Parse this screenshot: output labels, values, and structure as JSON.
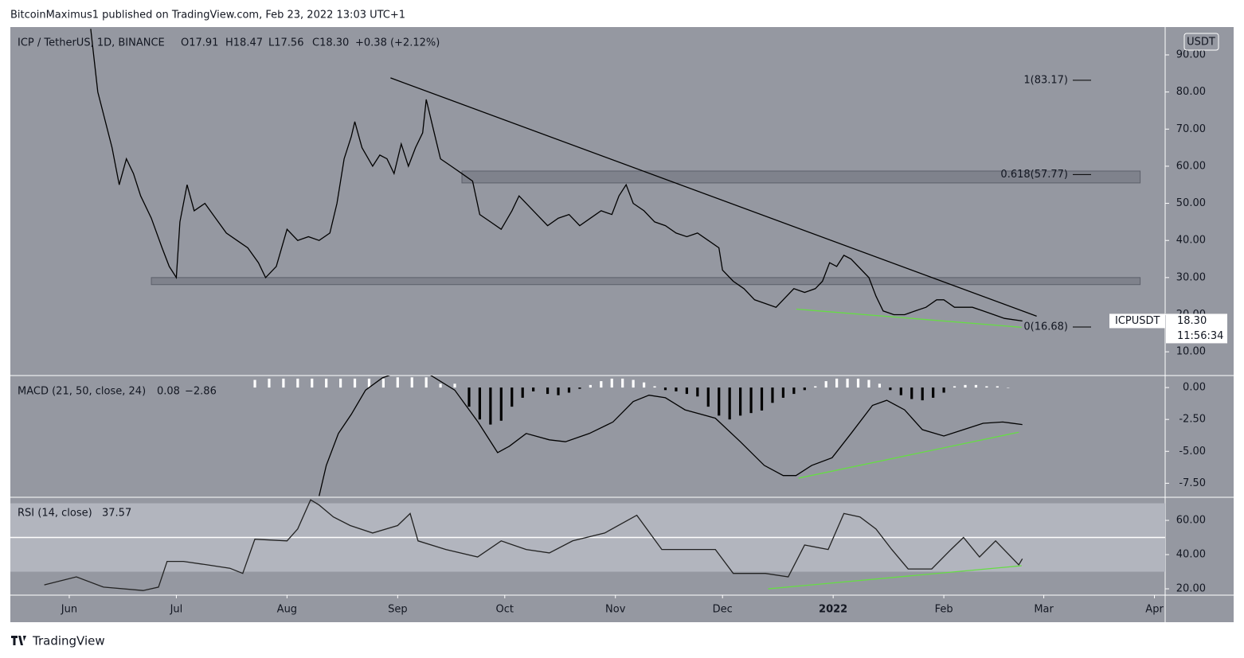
{
  "header": "BitcoinMaximus1 published on TradingView.com, Feb 23, 2022 13:03 UTC+1",
  "footer": "TradingView",
  "chart_data": [
    {
      "type": "line",
      "title": "ICP / TetherUS, 1D, BINANCE",
      "ohlc": [
        "O17.91",
        "H18.47",
        "L17.56",
        "C18.30",
        "+0.38 (+2.12%)"
      ],
      "axis_unit": "USDT",
      "last_price_label": "18.30",
      "countdown": "11:56:34",
      "xlim": [
        -16.5,
        307
      ],
      "xticks": [
        {
          "value": 0,
          "label": "Jun"
        },
        {
          "value": 30,
          "label": "Jul"
        },
        {
          "value": 61,
          "label": "Aug"
        },
        {
          "value": 92,
          "label": "Sep"
        },
        {
          "value": 122,
          "label": "Oct"
        },
        {
          "value": 153,
          "label": "Nov"
        },
        {
          "value": 183,
          "label": "Dec"
        },
        {
          "value": 214,
          "label": "2022"
        },
        {
          "value": 245,
          "label": "Feb"
        },
        {
          "value": 273,
          "label": "Mar"
        },
        {
          "value": 304,
          "label": "Apr"
        }
      ],
      "ylim": [
        3.6,
        97.5
      ],
      "yticks": [
        {
          "value": 10,
          "label": "10.00"
        },
        {
          "value": 20,
          "label": "20.00"
        },
        {
          "value": 30,
          "label": "30.00"
        },
        {
          "value": 40,
          "label": "40.00"
        },
        {
          "value": 50,
          "label": "50.00"
        },
        {
          "value": 60,
          "label": "60.00"
        },
        {
          "value": 70,
          "label": "70.00"
        },
        {
          "value": 80,
          "label": "80.00"
        },
        {
          "value": 90,
          "label": "90.00"
        }
      ],
      "series": [
        {
          "name": "ICPUSDT",
          "color": "#000000",
          "x": [
            6,
            8,
            12,
            14,
            16,
            18,
            20,
            23,
            26,
            28,
            30,
            31,
            33,
            35,
            38,
            41,
            44,
            47,
            50,
            53,
            55,
            58,
            61,
            64,
            67,
            70,
            73,
            75,
            77,
            79,
            80,
            82,
            85,
            87,
            89,
            91,
            93,
            95,
            97,
            99,
            100,
            102,
            104,
            107,
            110,
            113,
            115,
            118,
            121,
            124,
            126,
            128,
            131,
            134,
            137,
            140,
            143,
            146,
            149,
            152,
            154,
            156,
            158,
            161,
            164,
            167,
            170,
            173,
            176,
            179,
            182,
            183,
            186,
            189,
            192,
            195,
            198,
            200,
            203,
            206,
            209,
            211,
            213,
            215,
            217,
            219,
            222,
            224,
            226,
            228,
            231,
            234,
            237,
            240,
            243,
            245,
            248,
            251,
            253,
            256,
            259,
            262,
            267
          ],
          "values": [
            97,
            80,
            65,
            55,
            62,
            58,
            52,
            46,
            38,
            33,
            30,
            45,
            55,
            48,
            50,
            46,
            42,
            40,
            38,
            34,
            30,
            33,
            43,
            40,
            41,
            40,
            42,
            50,
            62,
            68,
            72,
            65,
            60,
            63,
            62,
            58,
            66,
            60,
            65,
            69,
            78,
            70,
            62,
            60,
            58,
            56,
            47,
            45,
            43,
            48,
            52,
            50,
            47,
            44,
            46,
            47,
            44,
            46,
            48,
            47,
            52,
            55,
            50,
            48,
            45,
            44,
            42,
            41,
            42,
            40,
            38,
            32,
            29,
            27,
            24,
            23,
            22,
            24,
            27,
            26,
            27,
            29,
            34,
            33,
            36,
            35,
            32,
            30,
            25,
            21,
            20,
            20,
            21,
            22,
            24,
            24,
            22,
            22,
            22,
            21,
            20,
            19,
            18.3
          ]
        }
      ],
      "zones": [
        {
          "xlim": [
            110,
            300
          ],
          "ylim": [
            55.5,
            58.7
          ]
        },
        {
          "xlim": [
            23,
            300
          ],
          "ylim": [
            28.1,
            30
          ]
        }
      ],
      "trendlines": [
        {
          "color": "#000000",
          "x": [
            90,
            271
          ],
          "y": [
            83.8,
            19.6
          ]
        },
        {
          "color": "#66dd44",
          "x": [
            203.7,
            266.8
          ],
          "y": [
            21.5,
            16.6
          ]
        }
      ],
      "fib_levels": [
        {
          "label": "1(83.17)",
          "value": 83.17
        },
        {
          "label": "0.618(57.77)",
          "value": 57.77
        },
        {
          "label": "0(16.68)",
          "value": 16.68
        }
      ]
    },
    {
      "type": "line",
      "title": "MACD (21, 50, close, 24)",
      "legend_values": [
        "0.08",
        "−2.86"
      ],
      "ylim": [
        -8.6,
        0.94
      ],
      "yticks": [
        {
          "value": 0,
          "label": "0.00"
        },
        {
          "value": -2.5,
          "label": "-2.50"
        },
        {
          "value": -5,
          "label": "-5.00"
        },
        {
          "value": -7.5,
          "label": "-7.50"
        }
      ],
      "histogram": {
        "colors": {
          "positive": "#ffffff",
          "negative": "#000000"
        },
        "x": [
          52,
          56,
          60,
          64,
          68,
          72,
          76,
          80,
          84,
          88,
          92,
          96,
          100,
          104,
          108,
          112,
          115,
          118,
          121,
          124,
          127,
          130,
          134,
          137,
          140,
          143,
          146,
          149,
          152,
          155,
          158,
          161,
          164,
          167,
          170,
          173,
          176,
          179,
          182,
          185,
          188,
          191,
          194,
          197,
          200,
          203,
          206,
          209,
          212,
          215,
          218,
          221,
          224,
          227,
          230,
          233,
          236,
          239,
          242,
          245,
          248,
          251,
          254,
          257,
          260,
          263
        ],
        "values": [
          0.6,
          0.7,
          0.7,
          0.7,
          0.7,
          0.7,
          0.7,
          0.7,
          0.7,
          0.7,
          0.8,
          0.8,
          0.8,
          0.3,
          0.3,
          -1.5,
          -2.5,
          -2.9,
          -2.6,
          -1.5,
          -0.8,
          -0.3,
          -0.5,
          -0.6,
          -0.4,
          -0.1,
          0.2,
          0.5,
          0.7,
          0.7,
          0.6,
          0.4,
          0.1,
          -0.2,
          -0.3,
          -0.5,
          -0.7,
          -1.5,
          -2.2,
          -2.5,
          -2.2,
          -2.0,
          -1.8,
          -1.2,
          -0.8,
          -0.5,
          -0.2,
          0.1,
          0.5,
          0.7,
          0.7,
          0.7,
          0.6,
          0.3,
          -0.2,
          -0.6,
          -0.9,
          -1.0,
          -0.8,
          -0.4,
          0.1,
          0.2,
          0.2,
          0.1,
          0.1,
          0.0
        ]
      },
      "series": [
        {
          "color": "#000000",
          "x": [
            70,
            72,
            75.4,
            79,
            83,
            87.7,
            92,
            101,
            108,
            114.5,
            120,
            123.3,
            128,
            134.5,
            139,
            145.7,
            152.3,
            158,
            162.4,
            167,
            172.5,
            181,
            188,
            194.7,
            200,
            203.6,
            208,
            213.7,
            219,
            225,
            229,
            234,
            239,
            245,
            250.5,
            256,
            261.5,
            267
          ],
          "values": [
            -8.5,
            -6.1,
            -3.6,
            -2.1,
            -0.2,
            0.75,
            1.2,
            1.0,
            -0.2,
            -2.7,
            -5.1,
            -4.6,
            -3.6,
            -4.1,
            -4.25,
            -3.6,
            -2.7,
            -1.1,
            -0.6,
            -0.8,
            -1.75,
            -2.4,
            -4.25,
            -6.1,
            -6.9,
            -6.9,
            -6.1,
            -5.5,
            -3.6,
            -1.4,
            -1.0,
            -1.75,
            -3.3,
            -3.8,
            -3.3,
            -2.8,
            -2.7,
            -2.9
          ]
        }
      ],
      "trendlines": [
        {
          "color": "#66dd44",
          "x": [
            204.3,
            266
          ],
          "y": [
            -7.1,
            -3.5
          ]
        }
      ]
    },
    {
      "type": "line",
      "title": "RSI (14, close)",
      "legend_values": [
        "37.57"
      ],
      "ylim": [
        16.3,
        73.5
      ],
      "yticks": [
        {
          "value": 20,
          "label": "20.00"
        },
        {
          "value": 40,
          "label": "40.00"
        },
        {
          "value": 60,
          "label": "60.00"
        }
      ],
      "bands": [
        30,
        70
      ],
      "midline": 50,
      "series": [
        {
          "color": "#222222",
          "x": [
            -7,
            2,
            9.6,
            20.7,
            25,
            27.4,
            32,
            38.6,
            45,
            48.6,
            52,
            61,
            64,
            67.6,
            70,
            74,
            78.7,
            85,
            92,
            95.5,
            97.7,
            105.5,
            114.4,
            121,
            128,
            134.5,
            141,
            150,
            159,
            166,
            172.5,
            181,
            186,
            195,
            201.4,
            206,
            212.6,
            217,
            221.5,
            226,
            230.4,
            235,
            241.6,
            247,
            250.5,
            255,
            259.5,
            266,
            267
          ],
          "values": [
            22.3,
            27,
            21,
            19,
            21,
            36,
            36,
            34,
            32,
            29,
            49,
            48,
            55,
            72,
            69,
            62,
            57,
            52.6,
            57,
            64,
            48,
            43,
            38.6,
            48,
            43,
            41,
            48,
            52.6,
            63,
            43,
            43,
            43,
            29,
            29,
            27,
            45.6,
            43,
            64,
            62,
            55,
            43,
            31.6,
            31.6,
            43,
            50,
            38.6,
            48,
            34,
            37.57
          ]
        }
      ],
      "trendlines": [
        {
          "color": "#66dd44",
          "x": [
            195.8,
            266.8
          ],
          "y": [
            20,
            33.5
          ]
        }
      ]
    }
  ]
}
